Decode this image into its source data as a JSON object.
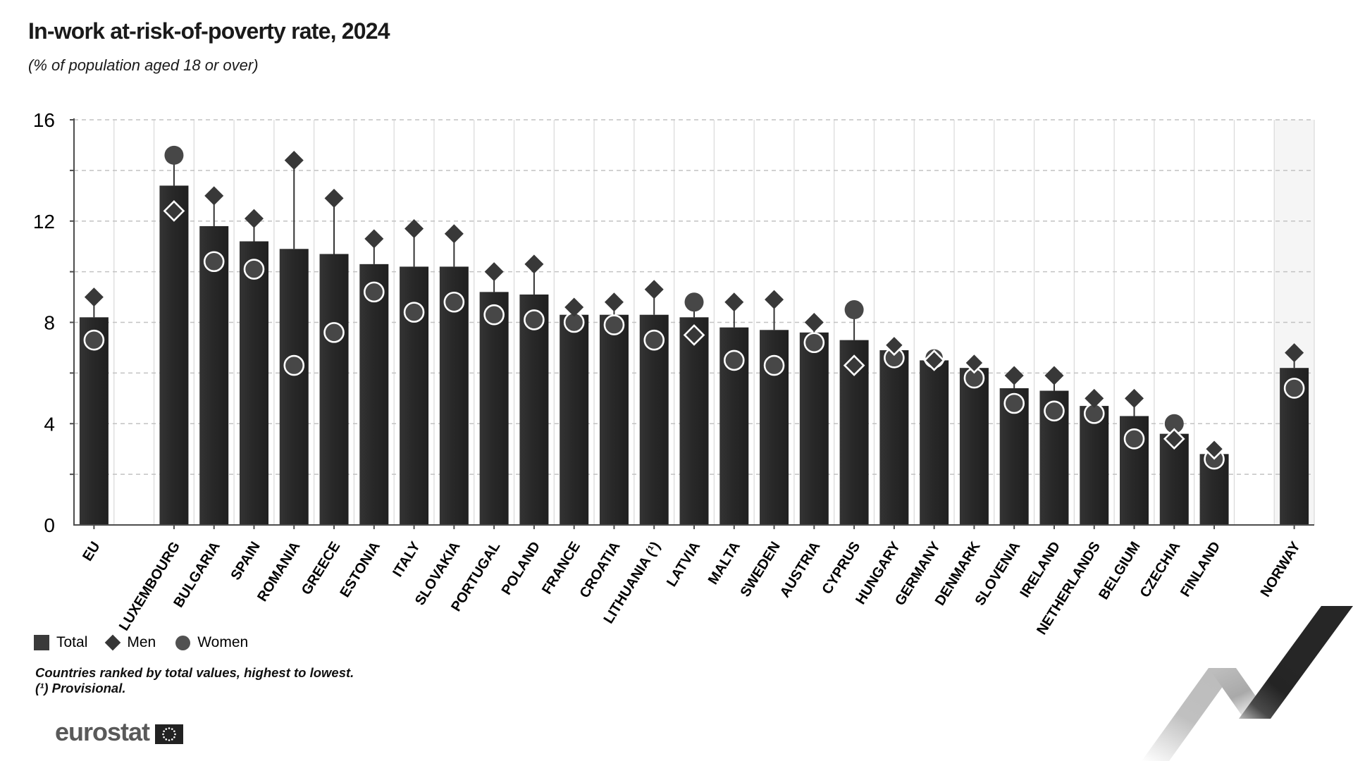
{
  "header": {
    "title": "In-work at-risk-of-poverty rate, 2024",
    "subtitle": "(% of population aged 18 or over)"
  },
  "legend": {
    "total_label": "Total",
    "men_label": "Men",
    "women_label": "Women"
  },
  "footnotes": {
    "line1": "Countries ranked by total values, highest to lowest.",
    "line2": "(¹) Provisional."
  },
  "logo": {
    "text": "eurostat"
  },
  "colors": {
    "bar_dark": "#202020",
    "bar_mid": "#282828",
    "bar_light": "#343434",
    "men_marker": "#383838",
    "women_marker": "#474747",
    "axis": "#4d4d4d",
    "grid_dashed": "#c2c2c2",
    "grid_column": "#d9d9d9",
    "highlight_band": "#f5f5f5",
    "marker_outline": "#ffffff",
    "whisker": "#333333"
  },
  "chart_data": {
    "type": "bar",
    "title": "In-work at-risk-of-poverty rate, 2024",
    "unit_label": "% of population aged 18 or over",
    "ylim": [
      0,
      16
    ],
    "yticks": [
      0,
      4,
      8,
      12,
      16
    ],
    "grid_step": 2,
    "grid": "horizontal-dashed-every-2, vertical-column-separators",
    "legend_position": "bottom-left",
    "ranking_note": "Countries ranked by total values, highest to lowest.",
    "series_names": [
      "Total",
      "Men",
      "Women"
    ],
    "countries": [
      {
        "name": "EU",
        "total": 8.2,
        "men": 9.0,
        "women": 7.3,
        "bold": true
      },
      {
        "name": "LUXEMBOURG",
        "total": 13.4,
        "men": 12.4,
        "women": 14.6,
        "gap_before": true
      },
      {
        "name": "BULGARIA",
        "total": 11.8,
        "men": 13.0,
        "women": 10.4
      },
      {
        "name": "SPAIN",
        "total": 11.2,
        "men": 12.1,
        "women": 10.1
      },
      {
        "name": "ROMANIA",
        "total": 10.9,
        "men": 14.4,
        "women": 6.3
      },
      {
        "name": "GREECE",
        "total": 10.7,
        "men": 12.9,
        "women": 7.6
      },
      {
        "name": "ESTONIA",
        "total": 10.3,
        "men": 11.3,
        "women": 9.2
      },
      {
        "name": "ITALY",
        "total": 10.2,
        "men": 11.7,
        "women": 8.4
      },
      {
        "name": "SLOVAKIA",
        "total": 10.2,
        "men": 11.5,
        "women": 8.8
      },
      {
        "name": "PORTUGAL",
        "total": 9.2,
        "men": 10.0,
        "women": 8.3
      },
      {
        "name": "POLAND",
        "total": 9.1,
        "men": 10.3,
        "women": 8.1
      },
      {
        "name": "FRANCE",
        "total": 8.3,
        "men": 8.6,
        "women": 8.0
      },
      {
        "name": "CROATIA",
        "total": 8.3,
        "men": 8.8,
        "women": 7.9
      },
      {
        "name": "LITHUANIA (¹)",
        "total": 8.3,
        "men": 9.3,
        "women": 7.3
      },
      {
        "name": "LATVIA",
        "total": 8.2,
        "men": 7.5,
        "women": 8.8
      },
      {
        "name": "MALTA",
        "total": 7.8,
        "men": 8.8,
        "women": 6.5
      },
      {
        "name": "SWEDEN",
        "total": 7.7,
        "men": 8.9,
        "women": 6.3
      },
      {
        "name": "AUSTRIA",
        "total": 7.6,
        "men": 8.0,
        "women": 7.2
      },
      {
        "name": "CYPRUS",
        "total": 7.3,
        "men": 6.3,
        "women": 8.5
      },
      {
        "name": "HUNGARY",
        "total": 6.9,
        "men": 7.1,
        "women": 6.6
      },
      {
        "name": "GERMANY",
        "total": 6.5,
        "men": 6.5,
        "women": 6.6
      },
      {
        "name": "DENMARK",
        "total": 6.2,
        "men": 6.4,
        "women": 5.8
      },
      {
        "name": "SLOVENIA",
        "total": 5.4,
        "men": 5.9,
        "women": 4.8
      },
      {
        "name": "IRELAND",
        "total": 5.3,
        "men": 5.9,
        "women": 4.5
      },
      {
        "name": "NETHERLANDS",
        "total": 4.7,
        "men": 5.0,
        "women": 4.4
      },
      {
        "name": "BELGIUM",
        "total": 4.3,
        "men": 5.0,
        "women": 3.4
      },
      {
        "name": "CZECHIA",
        "total": 3.6,
        "men": 3.4,
        "women": 4.0
      },
      {
        "name": "FINLAND",
        "total": 2.8,
        "men": 3.0,
        "women": 2.6
      },
      {
        "name": "NORWAY",
        "total": 6.2,
        "men": 6.8,
        "women": 5.4,
        "gap_before": true,
        "highlight": true
      }
    ]
  }
}
